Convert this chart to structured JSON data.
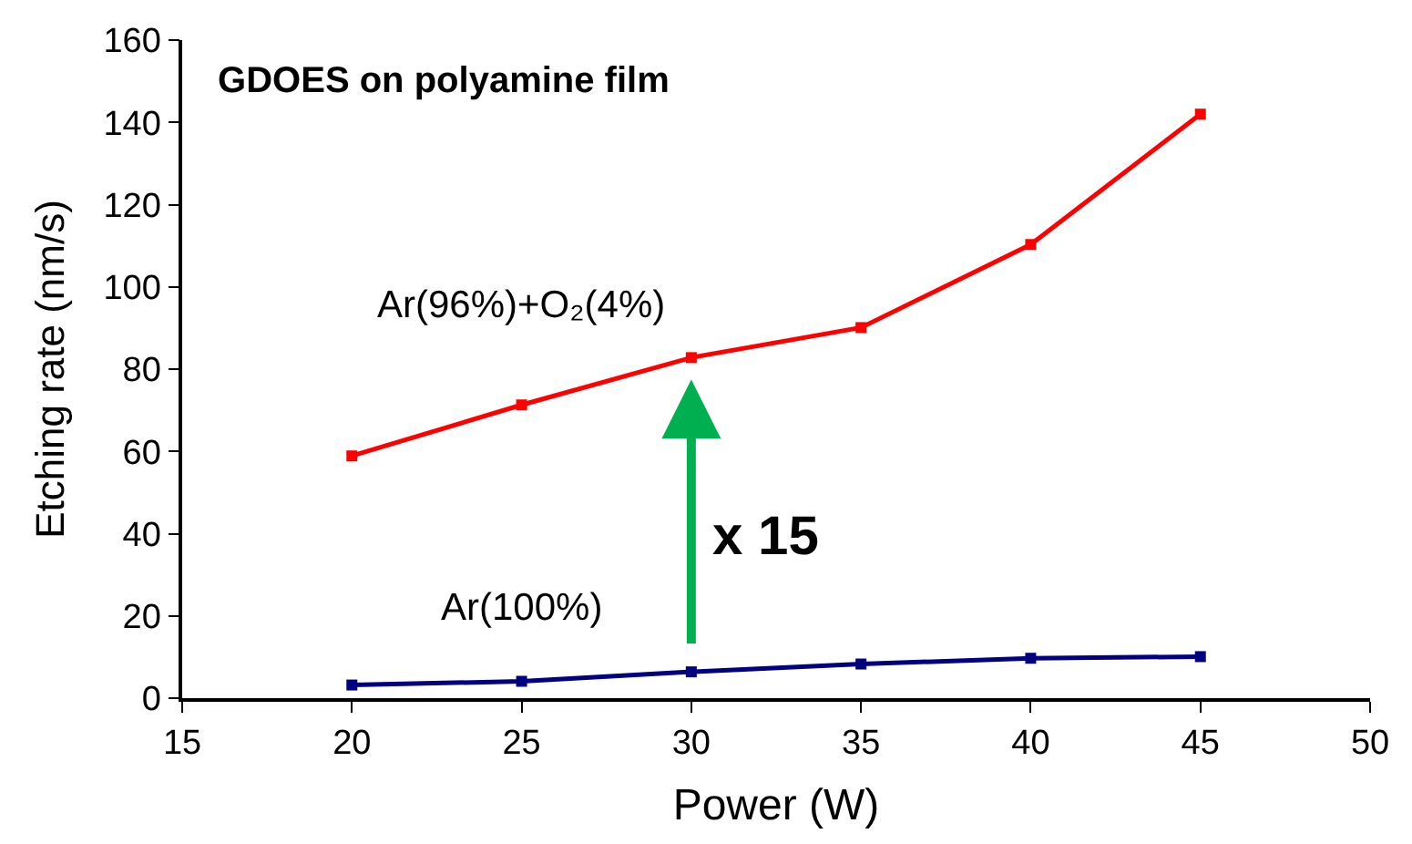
{
  "chart_data": {
    "type": "line",
    "title": "GDOES on polyamine film",
    "xlabel": "Power (W)",
    "ylabel": "Etching rate (nm/s)",
    "x": [
      20,
      25,
      30,
      35,
      40,
      45
    ],
    "series": [
      {
        "name": "Ar(96%)+O₂(4%)",
        "color": "#ff0000",
        "values": [
          58.9,
          71.3,
          82.8,
          90.1,
          110.3,
          142
        ]
      },
      {
        "name": "Ar(100%)",
        "color": "#000080",
        "values": [
          3.2,
          4.1,
          6.4,
          8.3,
          9.7,
          10.1
        ]
      }
    ],
    "annotations": [
      "x 15"
    ],
    "xlim": [
      15,
      50
    ],
    "xticks": [
      15,
      20,
      25,
      30,
      35,
      40,
      45,
      50
    ],
    "ylim": [
      0,
      160
    ],
    "yticks": [
      0,
      20,
      40,
      60,
      80,
      100,
      120,
      140,
      160
    ],
    "legend": false,
    "marker": "square",
    "line_style": "solid"
  }
}
